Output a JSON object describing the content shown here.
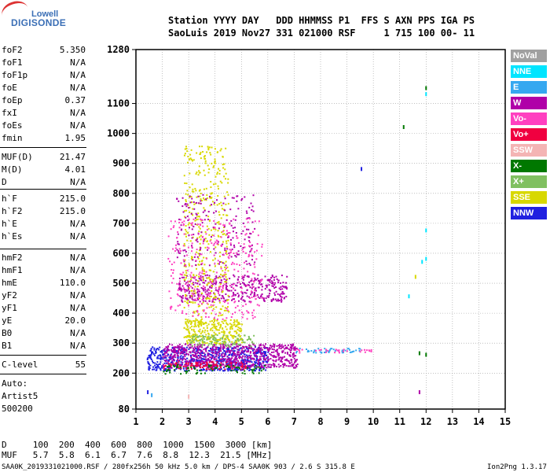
{
  "logo": {
    "top": "Lowell",
    "main": "DIGISONDE"
  },
  "header": {
    "line1": "Station YYYY DAY   DDD HHMMSS P1  FFS S AXN PPS IGA PS",
    "line2": "SaoLuis 2019 Nov27 331 021000 RSF     1 715 100 00- 11"
  },
  "params": [
    {
      "key": "foF2",
      "value": "5.350"
    },
    {
      "key": "foF1",
      "value": "N/A"
    },
    {
      "key": "foF1p",
      "value": "N/A"
    },
    {
      "key": "foE",
      "value": "N/A"
    },
    {
      "key": "foEp",
      "value": "0.37"
    },
    {
      "key": "fxI",
      "value": "N/A"
    },
    {
      "key": "foEs",
      "value": "N/A"
    },
    {
      "key": "fmin",
      "value": "1.95"
    },
    {
      "key": "MUF(D)",
      "value": "21.47"
    },
    {
      "key": "M(D)",
      "value": "4.01"
    },
    {
      "key": "D",
      "value": "N/A"
    },
    {
      "key": "h`F",
      "value": "215.0"
    },
    {
      "key": "h`F2",
      "value": "215.0"
    },
    {
      "key": "h`E",
      "value": "N/A"
    },
    {
      "key": "h`Es",
      "value": "N/A"
    },
    {
      "key": "hmF2",
      "value": "N/A"
    },
    {
      "key": "hmF1",
      "value": "N/A"
    },
    {
      "key": "hmE",
      "value": "110.0"
    },
    {
      "key": "yF2",
      "value": "N/A"
    },
    {
      "key": "yF1",
      "value": "N/A"
    },
    {
      "key": "yE",
      "value": "20.0"
    },
    {
      "key": "B0",
      "value": "N/A"
    },
    {
      "key": "B1",
      "value": "N/A"
    },
    {
      "key": "C-level",
      "value": "55"
    }
  ],
  "autoscaling": {
    "line1": "Auto:",
    "line2": "Artist5",
    "line3": "500200"
  },
  "legend": [
    {
      "label": "NoVal",
      "color": "#a0a0a0"
    },
    {
      "label": "NNE",
      "color": "#00e5ff"
    },
    {
      "label": "E",
      "color": "#36a8f0"
    },
    {
      "label": "W",
      "color": "#b000a8"
    },
    {
      "label": "Vo-",
      "color": "#ff40c0"
    },
    {
      "label": "Vo+",
      "color": "#f00040"
    },
    {
      "label": "SSW",
      "color": "#f4b4b4"
    },
    {
      "label": "X-",
      "color": "#007800"
    },
    {
      "label": "X+",
      "color": "#80c060"
    },
    {
      "label": "SSE",
      "color": "#d8d800"
    },
    {
      "label": "NNW",
      "color": "#2020e0"
    }
  ],
  "bottom": {
    "d_line": "D     100  200  400  600  800  1000  1500  3000 [km]",
    "muf_line": "MUF   5.7  5.8  6.1  6.7  7.6  8.8  12.3  21.5 [MHz]",
    "footer_left": "SAA0K_2019331021000.RSF / 280fx256h 50 kHz 5.0 km / DPS-4 SAA0K 903 / 2.6 S 315.8 E",
    "footer_right": "Ion2Png 1.3.17"
  },
  "chart_data": {
    "type": "scatter",
    "xlim": [
      1,
      15
    ],
    "ylim": [
      80,
      1280
    ],
    "x_ticks": [
      1,
      2,
      3,
      4,
      5,
      6,
      7,
      8,
      9,
      10,
      11,
      12,
      13,
      14,
      15
    ],
    "y_ticks": [
      80,
      200,
      300,
      400,
      500,
      600,
      700,
      800,
      900,
      1000,
      1100,
      1280
    ],
    "grid": true,
    "legend_position": "right",
    "regions": [
      {
        "series": "NNW",
        "x": [
          1.4,
          6.0
        ],
        "y": [
          210,
          290
        ],
        "density": 0.9
      },
      {
        "series": "W",
        "x": [
          2.0,
          7.1
        ],
        "y": [
          220,
          300
        ],
        "density": 0.8
      },
      {
        "series": "Vo+",
        "x": [
          2.0,
          5.2
        ],
        "y": [
          215,
          240
        ],
        "density": 0.6
      },
      {
        "series": "SSE",
        "x": [
          2.8,
          5.0
        ],
        "y": [
          300,
          380
        ],
        "density": 0.8
      },
      {
        "series": "X+",
        "x": [
          3.0,
          5.5
        ],
        "y": [
          290,
          330
        ],
        "density": 0.5
      },
      {
        "series": "W",
        "x": [
          2.6,
          6.7
        ],
        "y": [
          440,
          530
        ],
        "density": 0.5
      },
      {
        "series": "X-",
        "x": [
          2.0,
          6.0
        ],
        "y": [
          200,
          230
        ],
        "density": 0.3
      },
      {
        "series": "E",
        "x": [
          7.0,
          9.5
        ],
        "y": [
          270,
          285
        ],
        "density": 0.6
      },
      {
        "series": "Vo-",
        "x": [
          7.0,
          10.0
        ],
        "y": [
          270,
          282
        ],
        "density": 0.4
      },
      {
        "series": "SSE",
        "x": [
          2.8,
          4.5
        ],
        "y": [
          380,
          960
        ],
        "density": 0.2
      },
      {
        "series": "W",
        "x": [
          2.5,
          5.5
        ],
        "y": [
          560,
          800
        ],
        "density": 0.12
      },
      {
        "series": "Vo-",
        "x": [
          2.2,
          5.8
        ],
        "y": [
          380,
          720
        ],
        "density": 0.12
      }
    ],
    "points": [
      {
        "series": "NNW",
        "x": 9.55,
        "y": 880
      },
      {
        "series": "X-",
        "x": 11.15,
        "y": 1020
      },
      {
        "series": "X-",
        "x": 12.0,
        "y": 1150
      },
      {
        "series": "NNE",
        "x": 12.0,
        "y": 1130
      },
      {
        "series": "NNE",
        "x": 12.0,
        "y": 675
      },
      {
        "series": "NNE",
        "x": 12.0,
        "y": 580
      },
      {
        "series": "NNE",
        "x": 11.85,
        "y": 570
      },
      {
        "series": "SSE",
        "x": 11.6,
        "y": 520
      },
      {
        "series": "NNE",
        "x": 11.35,
        "y": 455
      },
      {
        "series": "X-",
        "x": 11.75,
        "y": 265
      },
      {
        "series": "X-",
        "x": 12.0,
        "y": 260
      },
      {
        "series": "W",
        "x": 11.75,
        "y": 135
      },
      {
        "series": "NNW",
        "x": 1.45,
        "y": 135
      },
      {
        "series": "E",
        "x": 1.6,
        "y": 125
      },
      {
        "series": "SSW",
        "x": 3.0,
        "y": 120
      }
    ]
  }
}
